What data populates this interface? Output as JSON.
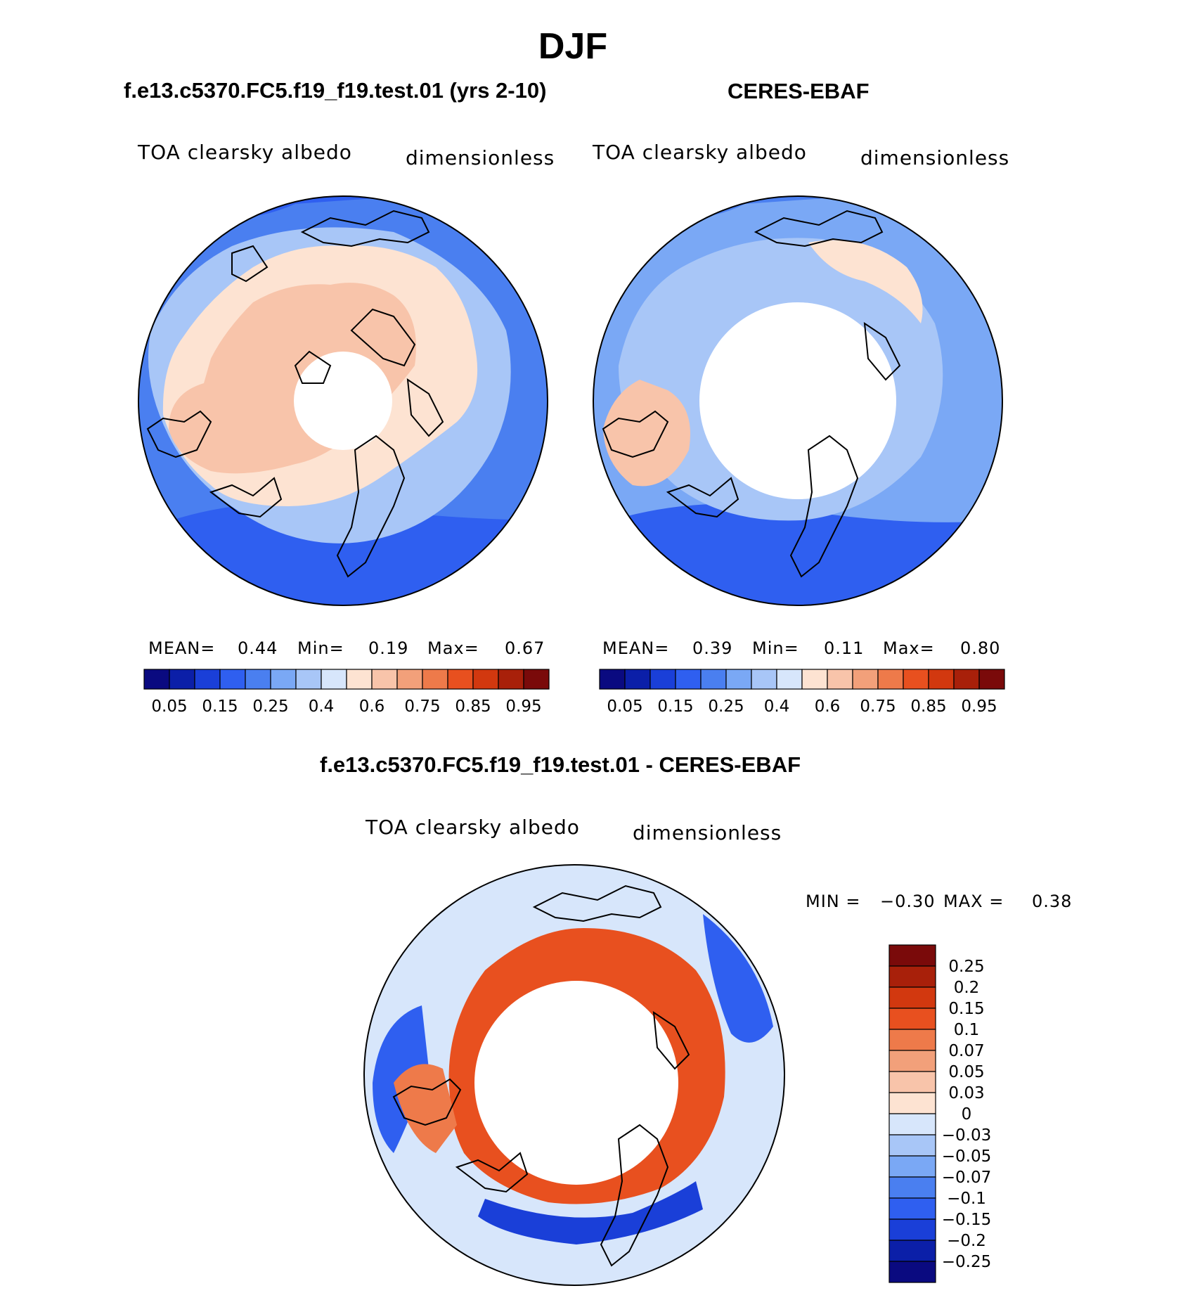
{
  "figure": {
    "title": "DJF",
    "colors": {
      "seq": [
        "#0a0a80",
        "#0b1fa8",
        "#1a3fd8",
        "#2f5ff0",
        "#4a7ff0",
        "#7aa8f5",
        "#a8c6f7",
        "#d7e6fb",
        "#fde3d2",
        "#f8c4aa",
        "#f2a07a",
        "#ee7a4a",
        "#e8501f",
        "#d2380f",
        "#a8200a",
        "#7a0a0a"
      ],
      "diff": [
        "#0a0a80",
        "#0b1fa8",
        "#1a3fd8",
        "#2f5ff0",
        "#4a7ff0",
        "#7aa8f5",
        "#a8c6f7",
        "#d7e6fb",
        "#fde3d2",
        "#f8c4aa",
        "#f2a07a",
        "#ee7a4a",
        "#e8501f",
        "#d2380f",
        "#a8200a",
        "#7a0a0a"
      ]
    }
  },
  "chart_data": [
    {
      "type": "heatmap",
      "title": "f.e13.c5370.FC5.f19_f19.test.01 (yrs 2-10)",
      "variable": "TOA clearsky albedo",
      "units": "dimensionless",
      "projection": "north polar stereographic",
      "stats": {
        "mean_label": "MEAN=",
        "mean": "0.44",
        "min_label": "Min=",
        "min": "0.19",
        "max_label": "Max=",
        "max": "0.67"
      },
      "colorbar": {
        "orientation": "horizontal",
        "tick_labels": [
          "0.05",
          "0.15",
          "0.25",
          "0.4",
          "0.6",
          "0.75",
          "0.85",
          "0.95"
        ]
      },
      "field_levels": {
        "outer": 0.25,
        "mid": 0.35,
        "ring": 0.45,
        "inner": 0.55,
        "arctic": 0.62
      }
    },
    {
      "type": "heatmap",
      "title": "CERES-EBAF",
      "variable": "TOA clearsky albedo",
      "units": "dimensionless",
      "projection": "north polar stereographic",
      "stats": {
        "mean_label": "MEAN=",
        "mean": "0.39",
        "min_label": "Min=",
        "min": "0.11",
        "max_label": "Max=",
        "max": "0.80"
      },
      "colorbar": {
        "orientation": "horizontal",
        "tick_labels": [
          "0.05",
          "0.15",
          "0.25",
          "0.4",
          "0.6",
          "0.75",
          "0.85",
          "0.95"
        ]
      },
      "field_levels": {
        "outer": 0.22,
        "mid": 0.32,
        "ring": 0.4,
        "inner": 0.55,
        "arctic": null
      }
    },
    {
      "type": "heatmap",
      "title": "f.e13.c5370.FC5.f19_f19.test.01 - CERES-EBAF",
      "variable": "TOA clearsky albedo",
      "units": "dimensionless",
      "projection": "north polar stereographic",
      "stats": {
        "min_label": "MIN =",
        "min": "−0.30",
        "max_label": "MAX =",
        "max": "0.38"
      },
      "colorbar": {
        "orientation": "vertical",
        "tick_labels": [
          "0.25",
          "0.2",
          "0.15",
          "0.1",
          "0.07",
          "0.05",
          "0.03",
          "0",
          "−0.03",
          "−0.05",
          "−0.07",
          "−0.1",
          "−0.15",
          "−0.2",
          "−0.25"
        ]
      },
      "field_levels": {
        "outer": -0.02,
        "mid": 0.02,
        "ring": 0.15,
        "inner": 0.1,
        "arctic": null
      }
    }
  ]
}
